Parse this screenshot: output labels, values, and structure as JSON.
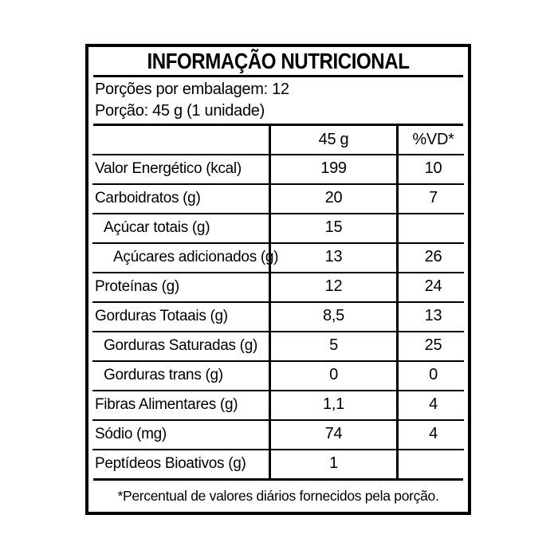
{
  "title": "INFORMAÇÃO NUTRICIONAL",
  "serving_info": {
    "servings_per_package": "Porções por embalagem: 12",
    "serving_size": "Porção: 45 g (1 unidade)"
  },
  "table": {
    "columns": [
      "",
      "45 g",
      "%VD*"
    ],
    "rows": [
      {
        "label": "Valor Energético (kcal)",
        "amount": "199",
        "vd": "10",
        "indent": 0
      },
      {
        "label": "Carboidratos (g)",
        "amount": "20",
        "vd": "7",
        "indent": 0
      },
      {
        "label": "Açúcar totais (g)",
        "amount": "15",
        "vd": "",
        "indent": 1
      },
      {
        "label": "Açúcares adicionados (g)",
        "amount": "13",
        "vd": "26",
        "indent": 2
      },
      {
        "label": "Proteínas (g)",
        "amount": "12",
        "vd": "24",
        "indent": 0
      },
      {
        "label": "Gorduras Totaais (g)",
        "amount": "8,5",
        "vd": "13",
        "indent": 0
      },
      {
        "label": "Gorduras Saturadas (g)",
        "amount": "5",
        "vd": "25",
        "indent": 1
      },
      {
        "label": "Gorduras trans (g)",
        "amount": "0",
        "vd": "0",
        "indent": 1
      },
      {
        "label": "Fibras Alimentares (g)",
        "amount": "1,1",
        "vd": "4",
        "indent": 0
      },
      {
        "label": "Sódio (mg)",
        "amount": "74",
        "vd": "4",
        "indent": 0
      },
      {
        "label": "Peptídeos Bioativos (g)",
        "amount": "1",
        "vd": "",
        "indent": 0
      }
    ]
  },
  "footnote": "*Percentual de valores diários fornecidos pela porção.",
  "colors": {
    "text": "#000000",
    "background": "#ffffff",
    "border": "#000000"
  }
}
